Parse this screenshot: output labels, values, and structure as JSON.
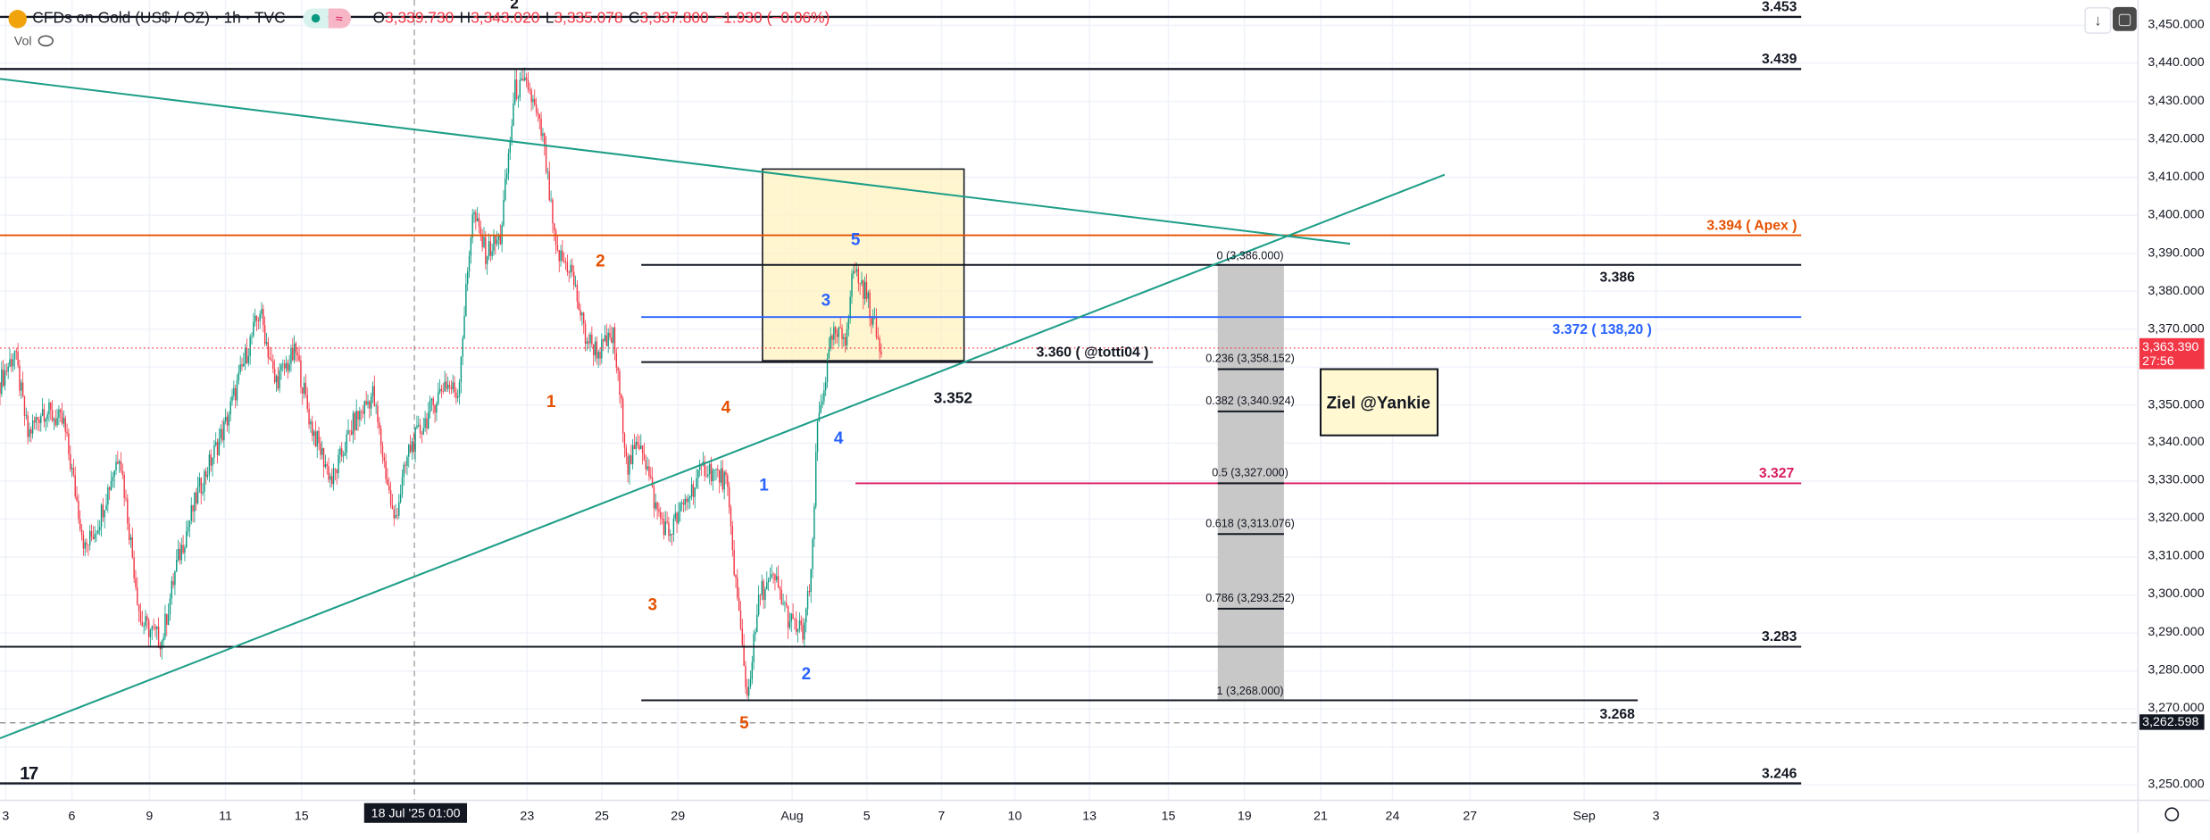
{
  "header": {
    "title": "CFDs on Gold (US$ / OZ) · 1h · TVC",
    "badge": "≈",
    "ohlc": [
      {
        "key": "O",
        "value": "3,339.730"
      },
      {
        "key": "H",
        "value": "3,343.020"
      },
      {
        "key": "L",
        "value": "3,335.078"
      },
      {
        "key": "C",
        "value": "3,337.800"
      }
    ],
    "change": "−1.930 (−0.06%)",
    "vol_label": "Vol"
  },
  "toolbar": {
    "scroll_down": "↓",
    "screenshot": "▢"
  },
  "price_axis": {
    "labels": [
      "3,450.000",
      "3,440.000",
      "3,430.000",
      "3,420.000",
      "3,410.000",
      "3,400.000",
      "3,390.000",
      "3,380.000",
      "3,370.000",
      "3,350.000",
      "3,340.000",
      "3,330.000",
      "3,320.000",
      "3,310.000",
      "3,300.000",
      "3,290.000",
      "3,280.000",
      "3,270.000",
      "3,250.000"
    ],
    "current_price": "3,363.390",
    "countdown": "27:56",
    "marked_low": "3,262.598"
  },
  "time_axis": {
    "labels": [
      "3",
      "6",
      "9",
      "11",
      "15",
      "23",
      "25",
      "29",
      "Aug",
      "5",
      "7",
      "10",
      "13",
      "15",
      "19",
      "21",
      "24",
      "27",
      "Sep",
      "3"
    ],
    "crosshair_label": "18 Jul '25 01:00"
  },
  "drawings": {
    "levels": {
      "l3453": "3.453",
      "l3439": "3.439",
      "apex": "3.394 ( Apex )",
      "l3386": "3.386",
      "l3372": "3.372 ( 138,20 )",
      "l3360": "3.360 ( @totti04 )",
      "l3352": "3.352",
      "l3327": "3.327",
      "l3283": "3.283",
      "l3268": "3.268",
      "l3246": "3.246"
    },
    "fib": [
      "0 (3,386.000)",
      "0.236 (3,358.152)",
      "0.382 (3,340.924)",
      "0.5 (3,327.000)",
      "0.618 (3,313.076)",
      "0.786 (3,293.252)",
      "1 (3,268.000)"
    ],
    "target_note": "Ziel @Yankie",
    "waves_orange": [
      "1",
      "2",
      "3",
      "4",
      "5"
    ],
    "waves_blue": [
      "1",
      "2",
      "3",
      "4",
      "5"
    ],
    "top_wave": "2",
    "colors": {
      "orange": "#e65100",
      "blue": "#2962ff",
      "pink": "#d81b60",
      "teal": "#1e9e88",
      "up": "#089981",
      "down": "#f23645"
    }
  },
  "chart_data": {
    "type": "candlestick",
    "symbol": "CFDs on Gold (US$ / OZ)",
    "interval": "1h",
    "ylim": [
      3245,
      3455
    ],
    "note": "approximate price path, [bar index (hours), price]",
    "waypoints": [
      [
        0,
        3356
      ],
      [
        9,
        3364
      ],
      [
        17,
        3342
      ],
      [
        26,
        3349
      ],
      [
        39,
        3345
      ],
      [
        52,
        3312
      ],
      [
        60,
        3319
      ],
      [
        73,
        3338
      ],
      [
        86,
        3293
      ],
      [
        99,
        3288
      ],
      [
        108,
        3308
      ],
      [
        121,
        3327
      ],
      [
        138,
        3345
      ],
      [
        151,
        3364
      ],
      [
        159,
        3375
      ],
      [
        168,
        3356
      ],
      [
        181,
        3364
      ],
      [
        190,
        3345
      ],
      [
        203,
        3330
      ],
      [
        216,
        3345
      ],
      [
        228,
        3353
      ],
      [
        241,
        3319
      ],
      [
        250,
        3338
      ],
      [
        259,
        3345
      ],
      [
        272,
        3356
      ],
      [
        280,
        3353
      ],
      [
        289,
        3401
      ],
      [
        297,
        3390
      ],
      [
        306,
        3394
      ],
      [
        315,
        3433
      ],
      [
        323,
        3434
      ],
      [
        332,
        3420
      ],
      [
        340,
        3390
      ],
      [
        349,
        3386
      ],
      [
        358,
        3368
      ],
      [
        366,
        3364
      ],
      [
        375,
        3368
      ],
      [
        384,
        3334
      ],
      [
        392,
        3341
      ],
      [
        401,
        3323
      ],
      [
        409,
        3316
      ],
      [
        422,
        3327
      ],
      [
        431,
        3334
      ],
      [
        444,
        3330
      ],
      [
        453,
        3290
      ],
      [
        457,
        3273
      ],
      [
        465,
        3301
      ],
      [
        474,
        3304
      ],
      [
        483,
        3293
      ],
      [
        491,
        3290
      ],
      [
        496,
        3304
      ],
      [
        500,
        3345
      ],
      [
        509,
        3368
      ],
      [
        517,
        3368
      ],
      [
        522,
        3386
      ],
      [
        530,
        3379
      ],
      [
        539,
        3363.39
      ]
    ]
  }
}
